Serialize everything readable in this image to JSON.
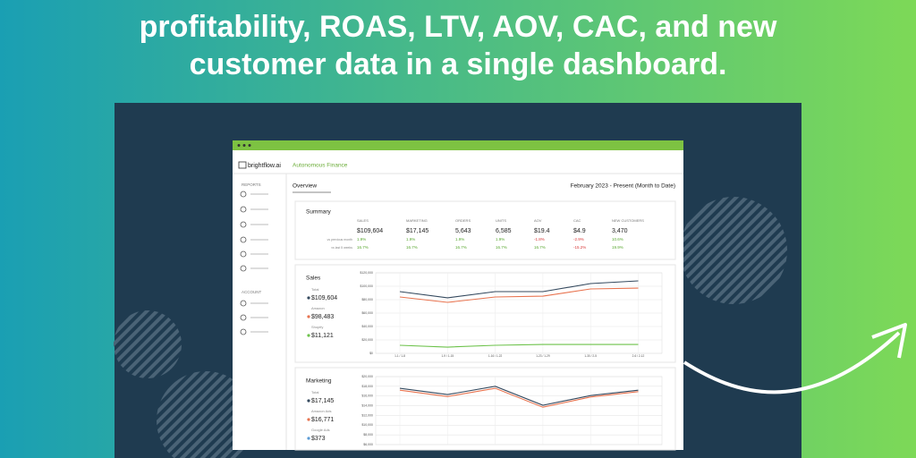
{
  "headline": [
    "profitability, ROAS, LTV, AOV, CAC, and new",
    "customer data in a single dashboard."
  ],
  "app": {
    "brand": "brightflow.ai",
    "subtitle": "Autonomous Finance"
  },
  "sidebar": {
    "reports_label": "REPORTS",
    "account_label": "ACCOUNT"
  },
  "overview": {
    "tab": "Overview",
    "date_range": "February 2023 - Present (Month to Date)"
  },
  "summary": {
    "title": "Summary",
    "row_labels": [
      "vs previous month",
      "vs last 5 weeks"
    ],
    "columns": [
      {
        "label": "SALES",
        "value": "$109,604",
        "changes": [
          "1.9%",
          "16.7%"
        ]
      },
      {
        "label": "MARKETING",
        "value": "$17,145",
        "changes": [
          "1.9%",
          "16.7%"
        ]
      },
      {
        "label": "ORDERS",
        "value": "5,643",
        "changes": [
          "1.9%",
          "16.7%"
        ]
      },
      {
        "label": "UNITS",
        "value": "6,585",
        "changes": [
          "1.9%",
          "16.7%"
        ]
      },
      {
        "label": "AOV",
        "value": "$19.4",
        "changes": [
          "-1.8%",
          "16.7%"
        ]
      },
      {
        "label": "CAC",
        "value": "$4.9",
        "changes": [
          "-2.9%",
          "-15.2%"
        ]
      },
      {
        "label": "NEW CUSTOMERS",
        "value": "3,470",
        "changes": [
          "10.6%",
          "19.9%"
        ]
      }
    ]
  },
  "charts": [
    {
      "type": "line",
      "title": "Sales",
      "categories": [
        "1-1 / 1-8",
        "1-9 / 1-15",
        "1-16 / 1-22",
        "1-23 / 1-29",
        "1-30 / 2-5",
        "2-6 / 2-12"
      ],
      "ylim": [
        0,
        120000
      ],
      "yticks": [
        {
          "value": 120000,
          "label": "$120,000"
        },
        {
          "value": 100000,
          "label": "$100,000"
        },
        {
          "value": 80000,
          "label": "$80,000"
        },
        {
          "value": 60000,
          "label": "$60,000"
        },
        {
          "value": 40000,
          "label": "$40,000"
        },
        {
          "value": 20000,
          "label": "$20,000"
        },
        {
          "value": 0,
          "label": "$0"
        }
      ],
      "grid": true,
      "series": [
        {
          "name": "Total",
          "total": "$109,604",
          "color": "#34495e",
          "values": [
            92000,
            82700,
            92000,
            92000,
            104000,
            108000
          ]
        },
        {
          "name": "Amazon",
          "total": "$98,483",
          "color": "#e8734f",
          "values": [
            84000,
            76000,
            84000,
            85300,
            96000,
            97300
          ]
        },
        {
          "name": "Shopify",
          "total": "$11,121",
          "color": "#6cc24a",
          "values": [
            12000,
            9300,
            12000,
            13300,
            13300,
            13300
          ]
        }
      ]
    },
    {
      "type": "line",
      "title": "Marketing",
      "ylim": [
        6000,
        20000
      ],
      "yticks": [
        {
          "value": 20000,
          "label": "$20,000"
        },
        {
          "value": 18000,
          "label": "$18,000"
        },
        {
          "value": 16000,
          "label": "$16,000"
        },
        {
          "value": 14000,
          "label": "$14,000"
        },
        {
          "value": 12000,
          "label": "$12,000"
        },
        {
          "value": 10000,
          "label": "$10,000"
        },
        {
          "value": 8000,
          "label": "$8,000"
        },
        {
          "value": 6000,
          "label": "$6,000"
        }
      ],
      "grid": true,
      "series": [
        {
          "name": "Total",
          "total": "$17,145",
          "color": "#34495e",
          "values": [
            17600,
            16300,
            18000,
            14100,
            16100,
            17200
          ]
        },
        {
          "name": "Amazon Ads",
          "total": "$16,771",
          "color": "#e8734f",
          "values": [
            17200,
            15900,
            17600,
            13700,
            15800,
            16900
          ]
        },
        {
          "name": "Google Ads",
          "total": "$373",
          "color": "#5b9bd5",
          "values": []
        }
      ]
    }
  ]
}
